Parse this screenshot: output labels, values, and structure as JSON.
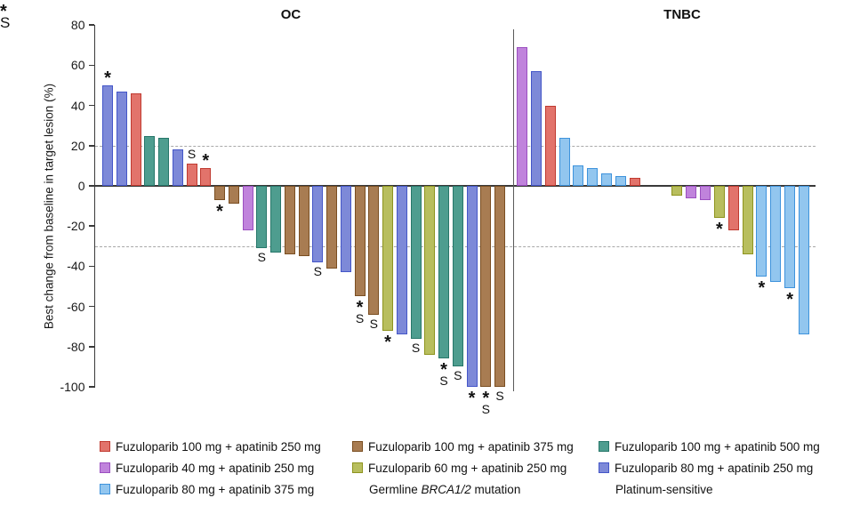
{
  "chart_data": {
    "type": "bar",
    "subtype": "waterfall",
    "ylabel": "Best change from baseline in target lesion (%)",
    "ylim": [
      -100,
      80
    ],
    "yticks": [
      80,
      60,
      40,
      20,
      0,
      -20,
      -40,
      -60,
      -80,
      -100
    ],
    "reference_lines": [
      20,
      -30
    ],
    "grid": false,
    "series_colors": {
      "F100_A250": {
        "label": "Fuzuloparib 100 mg + apatinib 250 mg",
        "fill": "#E2736B",
        "stroke": "#C03A30"
      },
      "F100_A375": {
        "label": "Fuzuloparib 100 mg + apatinib 375 mg",
        "fill": "#A87C52",
        "stroke": "#7A4E21"
      },
      "F100_A500": {
        "label": "Fuzuloparib 100 mg + apatinib 500 mg",
        "fill": "#4E9D8F",
        "stroke": "#27776A"
      },
      "F40_A250": {
        "label": "Fuzuloparib 40 mg + apatinib 250 mg",
        "fill": "#C083DC",
        "stroke": "#9B4FC0"
      },
      "F60_A250": {
        "label": "Fuzuloparib 60 mg + apatinib 250 mg",
        "fill": "#B8BE5E",
        "stroke": "#8E941F"
      },
      "F80_A250": {
        "label": "Fuzuloparib 80 mg + apatinib 250 mg",
        "fill": "#7D89D8",
        "stroke": "#4456C8"
      },
      "F80_A375": {
        "label": "Fuzuloparib 80 mg + apatinib 375 mg",
        "fill": "#92C6EF",
        "stroke": "#3E93DC"
      }
    },
    "groups": [
      {
        "label": "OC",
        "bars": [
          {
            "value": 50,
            "series": "F80_A250",
            "marks": [
              "*"
            ]
          },
          {
            "value": 47,
            "series": "F80_A250",
            "marks": []
          },
          {
            "value": 46,
            "series": "F100_A250",
            "marks": []
          },
          {
            "value": 25,
            "series": "F100_A500",
            "marks": []
          },
          {
            "value": 24,
            "series": "F100_A500",
            "marks": []
          },
          {
            "value": 18,
            "series": "F80_A250",
            "marks": []
          },
          {
            "value": 11,
            "series": "F100_A250",
            "marks": [
              "S"
            ]
          },
          {
            "value": 9,
            "series": "F100_A250",
            "marks": [
              "*"
            ]
          },
          {
            "value": -7,
            "series": "F100_A375",
            "marks": [
              "*"
            ]
          },
          {
            "value": -9,
            "series": "F100_A375",
            "marks": []
          },
          {
            "value": -22,
            "series": "F40_A250",
            "marks": []
          },
          {
            "value": -31,
            "series": "F100_A500",
            "marks": [
              "S"
            ]
          },
          {
            "value": -33,
            "series": "F100_A500",
            "marks": []
          },
          {
            "value": -34,
            "series": "F100_A375",
            "marks": []
          },
          {
            "value": -35,
            "series": "F100_A375",
            "marks": []
          },
          {
            "value": -38,
            "series": "F80_A250",
            "marks": [
              "S"
            ]
          },
          {
            "value": -41,
            "series": "F100_A375",
            "marks": []
          },
          {
            "value": -43,
            "series": "F80_A250",
            "marks": []
          },
          {
            "value": -55,
            "series": "F100_A375",
            "marks": [
              "*",
              "S"
            ]
          },
          {
            "value": -64,
            "series": "F100_A375",
            "marks": [
              "S"
            ]
          },
          {
            "value": -72,
            "series": "F60_A250",
            "marks": [
              "*"
            ]
          },
          {
            "value": -74,
            "series": "F80_A250",
            "marks": []
          },
          {
            "value": -76,
            "series": "F100_A500",
            "marks": [
              "S"
            ]
          },
          {
            "value": -84,
            "series": "F60_A250",
            "marks": []
          },
          {
            "value": -86,
            "series": "F100_A500",
            "marks": [
              "*",
              "S"
            ]
          },
          {
            "value": -90,
            "series": "F100_A500",
            "marks": [
              "S"
            ]
          },
          {
            "value": -100,
            "series": "F80_A250",
            "marks": [
              "*"
            ]
          },
          {
            "value": -100,
            "series": "F100_A375",
            "marks": [
              "*",
              "S"
            ]
          },
          {
            "value": -100,
            "series": "F100_A375",
            "marks": [
              "S"
            ]
          }
        ]
      },
      {
        "label": "TNBC",
        "bars": [
          {
            "value": 69,
            "series": "F40_A250",
            "marks": []
          },
          {
            "value": 57,
            "series": "F80_A250",
            "marks": []
          },
          {
            "value": 40,
            "series": "F100_A250",
            "marks": []
          },
          {
            "value": 24,
            "series": "F80_A375",
            "marks": []
          },
          {
            "value": 10,
            "series": "F80_A375",
            "marks": []
          },
          {
            "value": 9,
            "series": "F80_A375",
            "marks": []
          },
          {
            "value": 6,
            "series": "F80_A375",
            "marks": []
          },
          {
            "value": 5,
            "series": "F80_A375",
            "marks": []
          },
          {
            "value": 4,
            "series": "F100_A250",
            "marks": []
          },
          {
            "value": 0,
            "series": null,
            "marks": []
          },
          {
            "value": 0,
            "series": null,
            "marks": []
          },
          {
            "value": -5,
            "series": "F60_A250",
            "marks": []
          },
          {
            "value": -6,
            "series": "F40_A250",
            "marks": []
          },
          {
            "value": -7,
            "series": "F40_A250",
            "marks": []
          },
          {
            "value": -16,
            "series": "F60_A250",
            "marks": [
              "*"
            ]
          },
          {
            "value": -22,
            "series": "F100_A250",
            "marks": []
          },
          {
            "value": -34,
            "series": "F60_A250",
            "marks": []
          },
          {
            "value": -45,
            "series": "F80_A375",
            "marks": [
              "*"
            ]
          },
          {
            "value": -48,
            "series": "F80_A375",
            "marks": []
          },
          {
            "value": -51,
            "series": "F80_A375",
            "marks": [
              "*"
            ]
          },
          {
            "value": -74,
            "series": "F80_A375",
            "marks": []
          }
        ]
      }
    ],
    "annotation_symbols": {
      "asterisk": "*",
      "s": "S"
    }
  },
  "legend": {
    "items": [
      {
        "type": "swatch",
        "series": "F100_A250",
        "label": "Fuzuloparib 100 mg + apatinib 250 mg"
      },
      {
        "type": "swatch",
        "series": "F100_A375",
        "label": "Fuzuloparib 100 mg + apatinib 375 mg"
      },
      {
        "type": "swatch",
        "series": "F100_A500",
        "label": "Fuzuloparib 100 mg + apatinib 500 mg"
      },
      {
        "type": "swatch",
        "series": "F40_A250",
        "label": "Fuzuloparib 40 mg + apatinib 250 mg"
      },
      {
        "type": "swatch",
        "series": "F60_A250",
        "label": "Fuzuloparib 60 mg + apatinib 250 mg"
      },
      {
        "type": "swatch",
        "series": "F80_A250",
        "label": "Fuzuloparib 80 mg + apatinib 250 mg"
      },
      {
        "type": "swatch",
        "series": "F80_A375",
        "label": "Fuzuloparib 80 mg + apatinib 375 mg"
      },
      {
        "type": "symbol",
        "symbol": "*",
        "parts": [
          {
            "t": "Germline "
          },
          {
            "t": "BRCA1/2",
            "italic": true
          },
          {
            "t": " mutation"
          }
        ]
      },
      {
        "type": "symbol",
        "symbol": "S",
        "parts": [
          {
            "t": "Platinum-sensitive"
          }
        ]
      }
    ]
  }
}
